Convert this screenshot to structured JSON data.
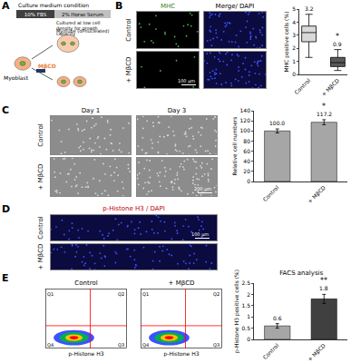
{
  "panels": {
    "A": {
      "letter": "A",
      "medium_title": "Culture medium condition",
      "media": [
        "10% FBS",
        "2% Horse Serum"
      ],
      "note": "Cultured at low cell density for growth capacity",
      "myoblast": "Myoblast",
      "myotube": "Myotube (di-nucleated)",
      "drug": "MβCD"
    },
    "B": {
      "letter": "B",
      "columns": [
        "MHC",
        "Merge/ DAPI"
      ],
      "rows": [
        "Control",
        "+ MβCD"
      ],
      "scale_bar": "100 μm"
    },
    "C": {
      "letter": "C",
      "columns": [
        "Day 1",
        "Day 3"
      ],
      "rows": [
        "Control",
        "+ MβCD"
      ],
      "scale_bar": "200 μm"
    },
    "D": {
      "letter": "D",
      "title": "p-Histone H3 / DAPI",
      "rows": [
        "Control",
        "+ MβCD"
      ],
      "scale_bar": "100 μm"
    },
    "E": {
      "letter": "E",
      "columns": [
        "Control",
        "+ MβCD"
      ],
      "axis_label": "p-Histone H3",
      "quadrants": [
        "Q1",
        "Q2",
        "Q3",
        "Q4"
      ]
    }
  },
  "chart_data": [
    {
      "type": "box",
      "y_label": "MHC positive cells (%)",
      "categories": [
        "Control",
        "+ MβCD"
      ],
      "q1": [
        2.5,
        0.6
      ],
      "median": [
        3.2,
        0.9
      ],
      "q3": [
        3.7,
        1.3
      ],
      "lower": [
        1.3,
        0.3
      ],
      "upper": [
        4.6,
        1.9
      ],
      "colors": [
        "#d9d9d9",
        "#595959"
      ],
      "ylim": [
        0,
        5
      ],
      "yticks": [
        0,
        1,
        2,
        3,
        4,
        5
      ],
      "data_labels": true,
      "annotations": [
        {
          "category": "+ MβCD",
          "text": "*"
        }
      ]
    },
    {
      "type": "bar",
      "y_label": "Relative cell numbers",
      "categories": [
        "Control",
        "+ MβCD"
      ],
      "values": [
        100.0,
        117.2
      ],
      "value_labels": [
        "100.0",
        "117.2"
      ],
      "errors": [
        4,
        5
      ],
      "colors": [
        "#a6a6a6",
        "#a6a6a6"
      ],
      "ylim": [
        0,
        140
      ],
      "yticks": [
        0,
        20,
        40,
        60,
        80,
        100,
        120,
        140
      ],
      "data_labels": true,
      "annotations": [
        {
          "category": "+ MβCD",
          "text": "*"
        }
      ]
    },
    {
      "type": "bar",
      "title": "FACS analysis",
      "y_label": "p-Histone H3 positive cells (%)",
      "categories": [
        "Control",
        "+ MβCD"
      ],
      "values": [
        0.6,
        1.8
      ],
      "errors": [
        0.1,
        0.2
      ],
      "colors": [
        "#a6a6a6",
        "#404040"
      ],
      "ylim": [
        0,
        2.5
      ],
      "yticks": [
        0,
        0.5,
        1,
        1.5,
        2,
        2.5
      ],
      "data_labels": true,
      "annotations": [
        {
          "category": "+ MβCD",
          "text": "**"
        }
      ]
    }
  ]
}
